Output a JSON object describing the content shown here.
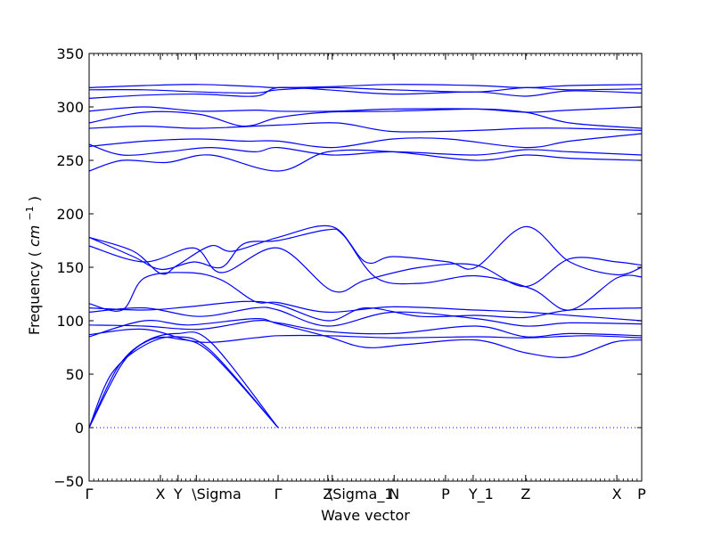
{
  "chart_data": {
    "type": "line",
    "xlabel": "Wave vector",
    "ylabel": "Frequency",
    "ylabel_unit": "cm",
    "ylabel_unit_exp": "−1",
    "ylim": [
      -50,
      350
    ],
    "x_domain": [
      0,
      1
    ],
    "yticks": [
      -50,
      0,
      50,
      100,
      150,
      200,
      250,
      300,
      350
    ],
    "ytick_labels": [
      "−50",
      "0",
      "50",
      "100",
      "150",
      "200",
      "250",
      "300",
      "350"
    ],
    "xticks": [
      {
        "label": "Γ",
        "x": 0.0
      },
      {
        "label": "X",
        "x": 0.129
      },
      {
        "label": "Y",
        "x": 0.161
      },
      {
        "label": "\\Sigma",
        "x": 0.194
      },
      {
        "label": "Γ",
        "x": 0.342
      },
      {
        "label": "Z",
        "x": 0.432
      },
      {
        "label": "\\Sigma_1",
        "x": 0.44
      },
      {
        "label": "N",
        "x": 0.552
      },
      {
        "label": "P",
        "x": 0.645
      },
      {
        "label": "Y_1",
        "x": 0.695
      },
      {
        "label": "Z",
        "x": 0.79
      },
      {
        "label": "X",
        "x": 0.955
      },
      {
        "label": "P",
        "x": 1.0
      }
    ],
    "zero_line": {
      "y": 0,
      "style": "dotted",
      "color": "#0000ff"
    },
    "line_color": "#0000ff",
    "series": [
      {
        "points": [
          [
            0,
            0
          ],
          [
            0.04,
            50
          ],
          [
            0.1,
            77
          ],
          [
            0.16,
            85
          ],
          [
            0.22,
            72
          ],
          [
            0.342,
            0
          ]
        ]
      },
      {
        "points": [
          [
            0,
            0
          ],
          [
            0.05,
            55
          ],
          [
            0.1,
            80
          ],
          [
            0.16,
            88
          ],
          [
            0.22,
            80
          ],
          [
            0.342,
            0
          ]
        ]
      },
      {
        "points": [
          [
            0,
            0
          ],
          [
            0.06,
            60
          ],
          [
            0.11,
            82
          ],
          [
            0.16,
            83
          ],
          [
            0.22,
            70
          ],
          [
            0.342,
            0
          ]
        ]
      },
      {
        "points": [
          [
            0,
            87
          ],
          [
            0.1,
            92
          ],
          [
            0.2,
            80
          ],
          [
            0.3,
            84
          ],
          [
            0.342,
            86
          ],
          [
            0.432,
            86
          ],
          [
            0.55,
            84
          ],
          [
            0.7,
            85
          ],
          [
            0.79,
            84
          ],
          [
            0.9,
            86
          ],
          [
            1,
            84
          ]
        ]
      },
      {
        "points": [
          [
            0,
            85
          ],
          [
            0.1,
            100
          ],
          [
            0.18,
            96
          ],
          [
            0.3,
            102
          ],
          [
            0.342,
            97
          ],
          [
            0.432,
            85
          ],
          [
            0.5,
            75
          ],
          [
            0.58,
            78
          ],
          [
            0.7,
            82
          ],
          [
            0.79,
            70
          ],
          [
            0.87,
            66
          ],
          [
            0.95,
            80
          ],
          [
            1,
            82
          ]
        ]
      },
      {
        "points": [
          [
            0,
            96
          ],
          [
            0.1,
            95
          ],
          [
            0.2,
            92
          ],
          [
            0.3,
            100
          ],
          [
            0.342,
            98
          ],
          [
            0.432,
            90
          ],
          [
            0.55,
            88
          ],
          [
            0.7,
            95
          ],
          [
            0.79,
            85
          ],
          [
            0.87,
            88
          ],
          [
            1,
            86
          ]
        ]
      },
      {
        "points": [
          [
            0,
            108
          ],
          [
            0.1,
            112
          ],
          [
            0.2,
            104
          ],
          [
            0.3,
            112
          ],
          [
            0.342,
            110
          ],
          [
            0.432,
            95
          ],
          [
            0.55,
            108
          ],
          [
            0.7,
            102
          ],
          [
            0.79,
            95
          ],
          [
            0.87,
            98
          ],
          [
            1,
            97
          ]
        ]
      },
      {
        "points": [
          [
            0,
            112
          ],
          [
            0.1,
            110
          ],
          [
            0.18,
            113
          ],
          [
            0.28,
            118
          ],
          [
            0.342,
            115
          ],
          [
            0.432,
            100
          ],
          [
            0.5,
            112
          ],
          [
            0.6,
            104
          ],
          [
            0.7,
            105
          ],
          [
            0.79,
            103
          ],
          [
            0.87,
            110
          ],
          [
            1,
            112
          ]
        ]
      },
      {
        "points": [
          [
            0,
            116
          ],
          [
            0.06,
            110
          ],
          [
            0.1,
            140
          ],
          [
            0.18,
            145
          ],
          [
            0.24,
            138
          ],
          [
            0.3,
            118
          ],
          [
            0.342,
            117
          ],
          [
            0.432,
            108
          ],
          [
            0.55,
            113
          ],
          [
            0.7,
            110
          ],
          [
            0.79,
            108
          ],
          [
            0.87,
            105
          ],
          [
            1,
            100
          ]
        ]
      },
      {
        "points": [
          [
            0,
            178
          ],
          [
            0.08,
            165
          ],
          [
            0.13,
            144
          ],
          [
            0.16,
            152
          ],
          [
            0.22,
            170
          ],
          [
            0.26,
            165
          ],
          [
            0.342,
            178
          ],
          [
            0.44,
            188
          ],
          [
            0.5,
            155
          ],
          [
            0.55,
            160
          ],
          [
            0.65,
            155
          ],
          [
            0.7,
            150
          ],
          [
            0.79,
            188
          ],
          [
            0.87,
            155
          ],
          [
            0.955,
            143
          ],
          [
            1,
            150
          ]
        ]
      },
      {
        "points": [
          [
            0,
            178
          ],
          [
            0.08,
            160
          ],
          [
            0.13,
            148
          ],
          [
            0.19,
            155
          ],
          [
            0.24,
            150
          ],
          [
            0.28,
            172
          ],
          [
            0.342,
            175
          ],
          [
            0.43,
            185
          ],
          [
            0.46,
            180
          ],
          [
            0.52,
            140
          ],
          [
            0.6,
            135
          ],
          [
            0.7,
            142
          ],
          [
            0.8,
            130
          ],
          [
            0.87,
            110
          ],
          [
            0.955,
            140
          ],
          [
            1,
            141
          ]
        ]
      },
      {
        "points": [
          [
            0,
            170
          ],
          [
            0.1,
            155
          ],
          [
            0.19,
            168
          ],
          [
            0.24,
            145
          ],
          [
            0.342,
            168
          ],
          [
            0.44,
            128
          ],
          [
            0.5,
            138
          ],
          [
            0.6,
            150
          ],
          [
            0.7,
            152
          ],
          [
            0.79,
            132
          ],
          [
            0.87,
            158
          ],
          [
            0.955,
            155
          ],
          [
            1,
            152
          ]
        ]
      },
      {
        "points": [
          [
            0,
            240
          ],
          [
            0.06,
            250
          ],
          [
            0.14,
            248
          ],
          [
            0.22,
            255
          ],
          [
            0.342,
            240
          ],
          [
            0.432,
            258
          ],
          [
            0.55,
            258
          ],
          [
            0.7,
            250
          ],
          [
            0.79,
            255
          ],
          [
            0.87,
            252
          ],
          [
            1,
            250
          ]
        ]
      },
      {
        "points": [
          [
            0,
            265
          ],
          [
            0.06,
            255
          ],
          [
            0.14,
            258
          ],
          [
            0.22,
            262
          ],
          [
            0.3,
            258
          ],
          [
            0.342,
            262
          ],
          [
            0.44,
            255
          ],
          [
            0.55,
            258
          ],
          [
            0.7,
            255
          ],
          [
            0.79,
            260
          ],
          [
            0.87,
            258
          ],
          [
            1,
            255
          ]
        ]
      },
      {
        "points": [
          [
            0,
            263
          ],
          [
            0.1,
            268
          ],
          [
            0.2,
            270
          ],
          [
            0.28,
            268
          ],
          [
            0.342,
            268
          ],
          [
            0.44,
            262
          ],
          [
            0.55,
            270
          ],
          [
            0.65,
            270
          ],
          [
            0.79,
            262
          ],
          [
            0.87,
            268
          ],
          [
            1,
            275
          ]
        ]
      },
      {
        "points": [
          [
            0,
            280
          ],
          [
            0.1,
            282
          ],
          [
            0.2,
            280
          ],
          [
            0.342,
            283
          ],
          [
            0.45,
            285
          ],
          [
            0.55,
            277
          ],
          [
            0.7,
            278
          ],
          [
            0.79,
            280
          ],
          [
            0.87,
            280
          ],
          [
            1,
            278
          ]
        ]
      },
      {
        "points": [
          [
            0,
            285
          ],
          [
            0.1,
            295
          ],
          [
            0.2,
            293
          ],
          [
            0.28,
            282
          ],
          [
            0.342,
            290
          ],
          [
            0.43,
            295
          ],
          [
            0.55,
            296
          ],
          [
            0.7,
            298
          ],
          [
            0.79,
            295
          ],
          [
            0.87,
            285
          ],
          [
            1,
            280
          ]
        ]
      },
      {
        "points": [
          [
            0,
            296
          ],
          [
            0.1,
            300
          ],
          [
            0.2,
            296
          ],
          [
            0.3,
            297
          ],
          [
            0.342,
            296
          ],
          [
            0.44,
            296
          ],
          [
            0.55,
            298
          ],
          [
            0.7,
            298
          ],
          [
            0.79,
            295
          ],
          [
            0.87,
            297
          ],
          [
            1,
            300
          ]
        ]
      },
      {
        "points": [
          [
            0,
            308
          ],
          [
            0.1,
            311
          ],
          [
            0.2,
            312
          ],
          [
            0.3,
            310
          ],
          [
            0.342,
            318
          ],
          [
            0.43,
            316
          ],
          [
            0.55,
            312
          ],
          [
            0.7,
            314
          ],
          [
            0.79,
            310
          ],
          [
            0.87,
            315
          ],
          [
            1,
            313
          ]
        ]
      },
      {
        "points": [
          [
            0,
            316
          ],
          [
            0.1,
            316
          ],
          [
            0.2,
            314
          ],
          [
            0.3,
            313
          ],
          [
            0.342,
            316
          ],
          [
            0.44,
            318
          ],
          [
            0.55,
            316
          ],
          [
            0.7,
            314
          ],
          [
            0.79,
            318
          ],
          [
            0.87,
            316
          ],
          [
            1,
            317
          ]
        ]
      },
      {
        "points": [
          [
            0,
            318
          ],
          [
            0.1,
            320
          ],
          [
            0.2,
            321
          ],
          [
            0.3,
            319
          ],
          [
            0.342,
            318
          ],
          [
            0.44,
            319
          ],
          [
            0.55,
            321
          ],
          [
            0.7,
            320
          ],
          [
            0.79,
            318
          ],
          [
            0.87,
            320
          ],
          [
            1,
            321
          ]
        ]
      }
    ]
  }
}
